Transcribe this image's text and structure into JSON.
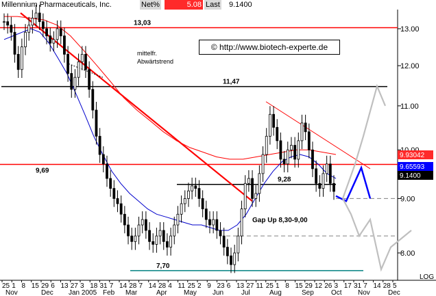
{
  "header": {
    "title": "Millennium Pharmaceuticals, Inc.",
    "net_label": "Net%",
    "net_value": "5.08",
    "last_label": "Last",
    "last_value": "9.1400"
  },
  "copyright": "© http://www.biotech-experte.de",
  "colors": {
    "price": "#000000",
    "ma_short": "#0000cc",
    "ma_long": "#ff0000",
    "trend": "#ff0000",
    "support": "#000000",
    "projection_blue": "#0000ff",
    "projection_grey": "#bfbfbf",
    "badge_red": "#ff2a2a",
    "badge_blue": "#0000ff",
    "badge_black": "#000000"
  },
  "chart_data": {
    "type": "line",
    "subtype": "candlestick",
    "y_scale": "log",
    "ylim": [
      7.7,
      13.4
    ],
    "y_ticks": [
      "13.00",
      "12.00",
      "11.00",
      "10.00",
      "9.00",
      "8.00"
    ],
    "y_tick_values": [
      13,
      12,
      11,
      10,
      9,
      8
    ],
    "log_label": "LOG",
    "x_tick_labels": [
      "25",
      "1",
      "8",
      "15",
      "29",
      "6",
      "13",
      "27",
      "3",
      "18",
      "31",
      "7",
      "14",
      "28",
      "7",
      "14",
      "28",
      "4",
      "11",
      "25",
      "2",
      "9",
      "23",
      "6",
      "13",
      "27",
      "11",
      "25",
      "1",
      "8",
      "15",
      "29",
      "12",
      "26",
      "3",
      "17",
      "31",
      "7",
      "14",
      "28",
      "5"
    ],
    "x_month_labels": [
      "Nov",
      "Dec",
      "Jan 2005",
      "Feb",
      "Mar",
      "Apr",
      "May",
      "Jun",
      "Jul",
      "Aug",
      "Sep",
      "Oct",
      "Nov",
      "Dec"
    ],
    "price_path": [
      13.2,
      13.1,
      12.9,
      12.3,
      11.9,
      12.5,
      12.9,
      13.1,
      13.3,
      13.45,
      13.2,
      13.0,
      12.8,
      12.6,
      12.7,
      13.0,
      12.8,
      12.3,
      11.8,
      11.4,
      11.7,
      12.1,
      12.3,
      11.9,
      11.4,
      10.9,
      10.3,
      9.9,
      9.7,
      9.4,
      9.2,
      9.0,
      8.9,
      8.7,
      8.5,
      8.3,
      8.2,
      8.3,
      8.5,
      8.6,
      8.4,
      8.2,
      8.15,
      8.3,
      8.4,
      8.2,
      8.1,
      8.3,
      8.5,
      8.7,
      8.9,
      9.0,
      9.15,
      9.25,
      9.2,
      9.0,
      8.8,
      8.6,
      8.5,
      8.6,
      8.4,
      8.3,
      8.1,
      7.95,
      7.8,
      8.0,
      8.3,
      8.8,
      9.3,
      9.4,
      9.0,
      9.1,
      9.5,
      9.9,
      10.3,
      10.8,
      10.5,
      10.2,
      9.8,
      9.7,
      10.0,
      10.1,
      9.8,
      10.2,
      10.6,
      10.4,
      10.0,
      9.6,
      9.3,
      9.2,
      9.5,
      9.7,
      9.3,
      9.14
    ],
    "ma_short_path": [
      12.7,
      12.8,
      12.9,
      13.0,
      12.9,
      12.6,
      12.2,
      11.8,
      11.3,
      10.8,
      10.3,
      9.9,
      9.55,
      9.3,
      9.1,
      8.95,
      8.8,
      8.7,
      8.65,
      8.6,
      8.55,
      8.5,
      8.5,
      8.45,
      8.4,
      8.4,
      8.5,
      8.7,
      9.0,
      9.3,
      9.55,
      9.75,
      9.85,
      9.9,
      9.85,
      9.7,
      9.5,
      9.4
    ],
    "ma_long_path": [
      13.35,
      13.35,
      13.3,
      13.25,
      13.1,
      12.8,
      12.4,
      12.0,
      11.6,
      11.2,
      10.9,
      10.65,
      10.4,
      10.2,
      10.05,
      9.95,
      9.85,
      9.8,
      9.8,
      9.85,
      9.9,
      9.95,
      10.0,
      10.0,
      9.95,
      9.9
    ],
    "horizontal_levels": [
      {
        "value": 13.03,
        "label": "13,03",
        "color": "#ff0000"
      },
      {
        "value": 11.47,
        "label": "11,47",
        "color": "#000000"
      },
      {
        "value": 9.69,
        "label": "9,69",
        "color": "#ff0000"
      },
      {
        "value": 9.28,
        "label": "9,28",
        "color": "#000000"
      },
      {
        "value": 7.7,
        "label": "7,70",
        "color": "#008080"
      }
    ],
    "annotations": [
      "mittelfr.",
      "Abwärtstrend",
      "Gap Up 8,30-9,00"
    ],
    "price_badges": [
      {
        "value": "9.93042",
        "color": "#ff2a2a"
      },
      {
        "value": "9.65593",
        "color": "#0000ff"
      },
      {
        "value": "9.1400",
        "color": "#000000"
      }
    ]
  }
}
